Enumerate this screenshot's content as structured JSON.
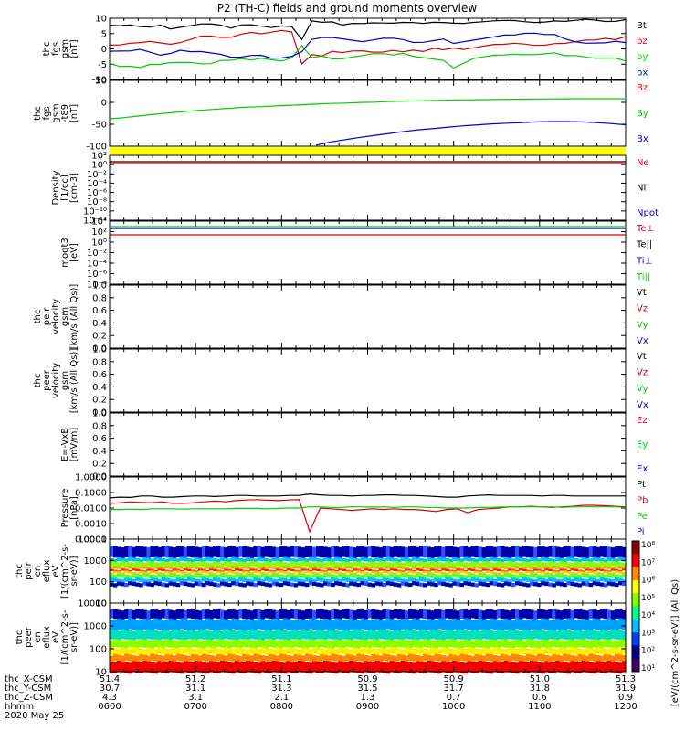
{
  "title": "P2 (TH-C) fields and ground moments overview",
  "colors": {
    "black": "#000000",
    "red": "#dd0000",
    "green": "#00cc00",
    "blue": "#0000cc",
    "yellow": "#ffff00"
  },
  "time_axis": {
    "rows": [
      {
        "label": "thc_X-CSM",
        "values": [
          "51.4",
          "51.2",
          "51.1",
          "50.9",
          "50.9",
          "51.0",
          "51.3"
        ]
      },
      {
        "label": "thc_Y-CSM",
        "values": [
          "30.7",
          "31.1",
          "31.3",
          "31.5",
          "31.7",
          "31.8",
          "31.9"
        ]
      },
      {
        "label": "thc_Z-CSM",
        "values": [
          "4.3",
          "3.1",
          "2.1",
          "1.3",
          "0.7",
          "0.6",
          "0.9"
        ]
      },
      {
        "label": "hhmm",
        "values": [
          "0600",
          "0700",
          "0800",
          "0900",
          "1000",
          "1100",
          "1200"
        ]
      }
    ],
    "date": "2020 May 25"
  },
  "colorbar": {
    "ticks": [
      "10⁸",
      "10⁷",
      "10⁶",
      "10⁵",
      "10⁴",
      "10³",
      "10²",
      "10¹"
    ],
    "label": "[eV/(cm^2-s-sr-eV)] (All Qs)"
  },
  "chart_data": [
    {
      "panel": "fgs_gsm",
      "type": "line",
      "ylabel": [
        "thc",
        "fgs",
        "gsm",
        "[nT]"
      ],
      "ylim": [
        -10,
        10
      ],
      "yticks": [
        "10",
        "5",
        "0",
        "-5",
        "-10"
      ],
      "series": [
        {
          "name": "Bt",
          "color": "black",
          "values": [
            7.5,
            7.8,
            8,
            7.4,
            7.2,
            7.8,
            6.5,
            7,
            7.5,
            8,
            8,
            7.5,
            7,
            8,
            8,
            7.5,
            7,
            7.5,
            7.2,
            3,
            9,
            8.5,
            8.6,
            8,
            8.5,
            8.4,
            8.6,
            8.5,
            8.4,
            8.6,
            8.5,
            8.2,
            8.5,
            8.4,
            8.6,
            8.5,
            8.8,
            9,
            9.2,
            9.3,
            9.2,
            8.8,
            8.5,
            8.6,
            8.9,
            9.2,
            9.5,
            9.8,
            9.5,
            9,
            9,
            9.5
          ]
        },
        {
          "name": "bz",
          "color": "red",
          "values": [
            1,
            1.5,
            2,
            2.2,
            2.5,
            2,
            1.5,
            2,
            3,
            4,
            4,
            3.5,
            4,
            5,
            5.5,
            5,
            5.5,
            6,
            5.5,
            -5,
            -2,
            -2.5,
            -1,
            -1,
            -0.5,
            -0.5,
            -1,
            -1,
            -0.5,
            -1,
            -0.5,
            -1,
            0,
            -0.5,
            0.5,
            0,
            0.5,
            1,
            1.5,
            1.5,
            1.8,
            1.5,
            1,
            1,
            1.5,
            2,
            2.5,
            3,
            3,
            3.5,
            3,
            4
          ]
        },
        {
          "name": "by",
          "color": "green",
          "values": [
            -5,
            -5.5,
            -5.5,
            -6,
            -5,
            -5,
            -4.5,
            -4.5,
            -4.5,
            -5,
            -5,
            -4,
            -3.5,
            -3,
            -3.5,
            -3,
            -3.5,
            -4,
            -3,
            1,
            -3,
            -2.5,
            -3.5,
            -3,
            -2.5,
            -2,
            -1.5,
            -1.5,
            -2,
            -1.5,
            -2.5,
            -3,
            -3.5,
            -4,
            -6,
            -4.5,
            -3,
            -2.5,
            -2,
            -2,
            -1.8,
            -2,
            -2,
            -1.8,
            -1.5,
            -2,
            -2,
            -2.5,
            -3,
            -3,
            -3,
            -4
          ]
        },
        {
          "name": "bx",
          "color": "blue",
          "values": [
            -1,
            -0.5,
            -0.5,
            0,
            -1,
            -2,
            -1.5,
            -0.5,
            -1,
            -1,
            -1.5,
            -2,
            -2.5,
            -2.5,
            -2,
            -2,
            -3,
            -3,
            -2.5,
            -1,
            3,
            3.5,
            3.5,
            3.5,
            3,
            2.5,
            3,
            3.5,
            3.5,
            3,
            2,
            2,
            2.5,
            3,
            2,
            2.5,
            3,
            3.5,
            4,
            4.5,
            4.5,
            5,
            5,
            4.5,
            4.5,
            3.5,
            2.5,
            2,
            2,
            2,
            2.5,
            2
          ]
        }
      ]
    },
    {
      "panel": "fgs_gsm_model",
      "type": "line",
      "ylabel": [
        "thc",
        "fgs",
        "gsm",
        "-t89",
        "[nT]"
      ],
      "ylim": [
        -125,
        75
      ],
      "yticks": [
        "50",
        "0",
        "-50",
        "-100"
      ],
      "series": [
        {
          "name": "Bz",
          "color": "red",
          "values": []
        },
        {
          "name": "By",
          "color": "green",
          "values": [
            -42,
            -38,
            -33,
            -28,
            -24,
            -20,
            -16,
            -13,
            -10,
            -7,
            -5,
            -3,
            -1,
            1,
            3,
            5,
            6,
            8,
            9,
            11,
            12,
            13,
            14,
            15,
            16,
            16.5,
            17,
            17.5,
            18,
            18.5,
            19,
            19.2,
            19.5,
            19.5,
            19.5,
            19.3
          ]
        },
        {
          "name": "Bx",
          "color": "blue",
          "values": [
            null,
            null,
            null,
            null,
            null,
            null,
            null,
            null,
            null,
            null,
            null,
            null,
            null,
            null,
            -122,
            -112,
            -105,
            -98,
            -92,
            -86,
            -80,
            -75,
            -71,
            -67,
            -63,
            -60,
            -57,
            -55,
            -53,
            -51,
            -50,
            -50,
            -51,
            -53,
            -56,
            -60
          ]
        }
      ]
    },
    {
      "panel": "density",
      "type": "line",
      "ylabel": [
        "Density",
        "[1/cc]",
        "[cm-3]"
      ],
      "ylog": true,
      "yticks": [
        "10²",
        "10⁰",
        "10⁻²",
        "10⁻⁴",
        "10⁻⁶",
        "10⁻⁸",
        "10⁻¹⁰",
        "10⁻¹²"
      ],
      "series": [
        {
          "name": "Ne",
          "color": "red"
        },
        {
          "name": "Ni",
          "color": "black"
        },
        {
          "name": "Npot",
          "color": "blue"
        }
      ]
    },
    {
      "panel": "temperature",
      "type": "line",
      "ylabel": [
        "moqt3",
        "[eV]"
      ],
      "ylog": true,
      "yticks": [
        "10⁴",
        "10²",
        "10⁰",
        "10⁻²",
        "10⁻⁴",
        "10⁻⁶",
        "10⁻⁸"
      ],
      "series": [
        {
          "name": "Te⊥",
          "color": "red"
        },
        {
          "name": "Te||",
          "color": "black"
        },
        {
          "name": "Ti⊥",
          "color": "blue"
        },
        {
          "name": "Ti||",
          "color": "green"
        }
      ]
    },
    {
      "panel": "ion_velocity",
      "type": "line",
      "ylabel": [
        "thc",
        "peir",
        "velocity",
        "gsm",
        "[km/s (All Qs)]"
      ],
      "ylim": [
        0,
        1
      ],
      "yticks": [
        "1.0",
        "0.8",
        "0.6",
        "0.4",
        "0.2",
        "0.0"
      ],
      "series": [
        {
          "name": "Vt",
          "color": "black"
        },
        {
          "name": "Vz",
          "color": "red"
        },
        {
          "name": "Vy",
          "color": "green"
        },
        {
          "name": "Vx",
          "color": "blue"
        }
      ]
    },
    {
      "panel": "electron_velocity",
      "type": "line",
      "ylabel": [
        "thc",
        "peer",
        "velocity",
        "gsm",
        "[km/s (All Qs)]"
      ],
      "ylim": [
        0,
        1
      ],
      "yticks": [
        "1.0",
        "0.8",
        "0.6",
        "0.4",
        "0.2",
        "0.0"
      ],
      "series": [
        {
          "name": "Vt",
          "color": "black"
        },
        {
          "name": "Vz",
          "color": "red"
        },
        {
          "name": "Vy",
          "color": "green"
        },
        {
          "name": "Vx",
          "color": "blue"
        }
      ]
    },
    {
      "panel": "efield",
      "type": "line",
      "ylabel": [
        "E=-VxB",
        "[mV/m]"
      ],
      "ylim": [
        0,
        1
      ],
      "yticks": [
        "1.0",
        "0.8",
        "0.6",
        "0.4",
        "0.2",
        "0.0"
      ],
      "series": [
        {
          "name": "Ez",
          "color": "red"
        },
        {
          "name": "Ey",
          "color": "green"
        },
        {
          "name": "Ex",
          "color": "blue"
        }
      ]
    },
    {
      "panel": "pressure",
      "type": "line",
      "ylabel": [
        "Pressure",
        "[nPa]"
      ],
      "ylog": true,
      "yticks": [
        "1.0000",
        "0.1000",
        "0.0100",
        "0.0010",
        "0.0001"
      ],
      "series": [
        {
          "name": "Pt",
          "color": "black",
          "values": [
            0.045,
            0.05,
            0.048,
            0.06,
            0.06,
            0.05,
            0.05,
            0.055,
            0.06,
            0.06,
            0.055,
            0.06,
            0.065,
            0.065,
            0.06,
            0.06,
            0.06,
            0.065,
            0.065,
            0.08,
            0.07,
            0.065,
            0.065,
            0.06,
            0.065,
            0.065,
            0.07,
            0.07,
            0.065,
            0.065,
            0.06,
            0.055,
            0.05,
            0.05,
            0.06,
            0.065,
            0.07,
            0.065,
            0.065,
            0.065,
            0.065,
            0.06,
            0.065,
            0.065,
            0.06,
            0.06,
            0.06,
            0.06,
            0.06,
            0.06
          ]
        },
        {
          "name": "Pb",
          "color": "red",
          "values": [
            0.02,
            0.022,
            0.025,
            0.023,
            0.022,
            0.025,
            0.02,
            0.02,
            0.022,
            0.025,
            0.028,
            0.025,
            0.03,
            0.033,
            0.035,
            0.032,
            0.03,
            0.033,
            0.035,
            0.0003,
            0.01,
            0.009,
            0.008,
            0.007,
            0.008,
            0.009,
            0.008,
            0.009,
            0.008,
            0.008,
            0.007,
            0.006,
            0.008,
            0.009,
            0.005,
            0.008,
            0.009,
            0.01,
            0.012,
            0.012,
            0.013,
            0.012,
            0.011,
            0.012,
            0.013,
            0.015,
            0.015,
            0.014,
            0.013,
            0.012
          ]
        },
        {
          "name": "Pe",
          "color": "green",
          "values": [
            0.008,
            0.008,
            0.0085,
            0.008,
            0.009,
            0.009,
            0.009,
            0.0085,
            0.009,
            0.009,
            0.009,
            0.009,
            0.0095,
            0.0095,
            0.0095,
            0.009,
            0.0095,
            0.01,
            0.01,
            0.012,
            0.012,
            0.011,
            0.011,
            0.012,
            0.012,
            0.0115,
            0.012,
            0.011,
            0.012,
            0.012,
            0.011,
            0.011,
            0.01,
            0.01,
            0.01,
            0.011,
            0.011,
            0.0115,
            0.012,
            0.012,
            0.012,
            0.012,
            0.012,
            0.011,
            0.012,
            0.012,
            0.012,
            0.012,
            0.012,
            0.011
          ]
        },
        {
          "name": "Pi",
          "color": "blue",
          "values": []
        }
      ]
    },
    {
      "panel": "ion_eflux",
      "type": "heatmap",
      "ylabel": [
        "thc",
        "peir",
        "en",
        "eflux",
        "eV",
        "[1/(cm^2-s-",
        "sr-eV)]"
      ],
      "ylog": true,
      "yticks": [
        "10000",
        "1000",
        "100",
        "10"
      ]
    },
    {
      "panel": "electron_eflux",
      "type": "heatmap",
      "ylabel": [
        "thc",
        "peer",
        "en",
        "eflux",
        "eV",
        "[1/(cm^2-s-",
        "sr-eV)]"
      ],
      "ylog": true,
      "yticks": [
        "10000",
        "1000",
        "100",
        "10"
      ]
    }
  ]
}
